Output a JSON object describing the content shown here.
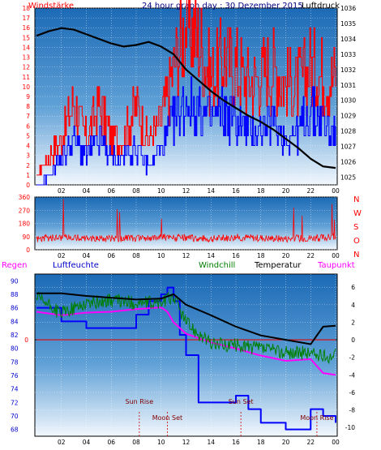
{
  "header": {
    "left": "Windstärke",
    "title": "24 hour graph day : 30 Dezember 2015",
    "right": "Luftdruck"
  },
  "colors": {
    "bg": "#ffffff",
    "gust": "#ff0000",
    "wind": "#0000ff",
    "pressure": "#000000",
    "direction": "#ff0000",
    "temperature": "#000000",
    "windchill": "#008000",
    "dewpoint": "#ff00ff",
    "humidity": "#0000ff",
    "rain": "#ff0000"
  },
  "chart_data": [
    {
      "type": "line",
      "id": "wind_pressure",
      "x_ticks": [
        "02",
        "04",
        "06",
        "08",
        "10",
        "12",
        "14",
        "16",
        "18",
        "20",
        "22",
        "00"
      ],
      "left_axis": {
        "ticks": [
          "0",
          "1",
          "2",
          "3",
          "4",
          "5",
          "6",
          "7",
          "8",
          "9",
          "10",
          "11",
          "12",
          "13",
          "14",
          "15",
          "16",
          "17",
          "18"
        ],
        "range": [
          0,
          18
        ]
      },
      "right_axis": {
        "ticks": [
          "1025",
          "1026",
          "1027",
          "1028",
          "1029",
          "1030",
          "1031",
          "1032",
          "1033",
          "1034",
          "1035",
          "1036"
        ],
        "range": [
          1024.5,
          1036
        ]
      },
      "series": [
        {
          "name": "Luftdruck",
          "axis": "right",
          "x": [
            0,
            1,
            2,
            3,
            4,
            5,
            6,
            7,
            8,
            9,
            10,
            11,
            12,
            13,
            14,
            15,
            16,
            17,
            18,
            19,
            20,
            21,
            22,
            23,
            24
          ],
          "y": [
            1034.2,
            1034.5,
            1034.7,
            1034.6,
            1034.3,
            1034.0,
            1033.7,
            1033.5,
            1033.6,
            1033.8,
            1033.5,
            1033.0,
            1032.0,
            1031.3,
            1030.6,
            1030.0,
            1029.5,
            1029.0,
            1028.6,
            1028.1,
            1027.5,
            1026.9,
            1026.2,
            1025.7,
            1025.6
          ]
        },
        {
          "name": "Windstärke Böen",
          "axis": "left",
          "x": [
            0,
            1,
            2,
            3,
            4,
            5,
            6,
            7,
            8,
            9,
            10,
            11,
            12,
            13,
            14,
            15,
            16,
            17,
            18,
            19,
            20,
            21,
            22,
            23,
            24
          ],
          "y": [
            1,
            3,
            5,
            9,
            5,
            9,
            5,
            5,
            9,
            5,
            7,
            13,
            18,
            16,
            12,
            14,
            13,
            11,
            12,
            13,
            11,
            11,
            13,
            12,
            12
          ]
        },
        {
          "name": "Windstärke",
          "axis": "left",
          "x": [
            0,
            1,
            2,
            3,
            4,
            5,
            6,
            7,
            8,
            9,
            10,
            11,
            12,
            13,
            14,
            15,
            16,
            17,
            18,
            19,
            20,
            21,
            22,
            23,
            24
          ],
          "y": [
            0,
            1,
            3,
            5,
            3,
            5,
            3,
            3,
            4,
            2,
            4,
            7,
            9,
            8,
            7,
            8,
            7,
            6,
            6,
            7,
            5,
            6,
            8,
            7,
            5
          ]
        }
      ]
    },
    {
      "type": "line",
      "id": "wind_direction",
      "x_ticks": [
        "02",
        "04",
        "06",
        "08",
        "10",
        "12",
        "14",
        "16",
        "18",
        "20",
        "22",
        "00"
      ],
      "left_axis": {
        "ticks": [
          "360",
          "270",
          "180",
          "90",
          "0"
        ],
        "range": [
          0,
          360
        ]
      },
      "right_labels": [
        "N",
        "W",
        "S",
        "O",
        "N"
      ],
      "series": [
        {
          "name": "Windrichtung",
          "x": [
            0,
            2,
            4,
            6,
            8,
            10,
            12,
            14,
            16,
            18,
            20,
            22,
            24
          ],
          "y": [
            75,
            85,
            80,
            75,
            80,
            85,
            80,
            75,
            85,
            80,
            75,
            80,
            85
          ]
        }
      ]
    },
    {
      "type": "line",
      "id": "temp_humidity",
      "x_ticks": [
        "02",
        "04",
        "06",
        "08",
        "10",
        "12",
        "14",
        "16",
        "18",
        "20",
        "22",
        "00"
      ],
      "header": {
        "rain": "Regen",
        "humidity": "Luftfeuchte",
        "windchill": "Windchill",
        "temperature": "Temperatur",
        "dewpoint": "Taupunkt"
      },
      "left_axis": {
        "ticks": [
          "90",
          "88",
          "86",
          "84",
          "82",
          "80",
          "78",
          "76",
          "74",
          "72",
          "70",
          "68"
        ],
        "range": [
          67,
          91
        ]
      },
      "rain_axis": {
        "tick": "0"
      },
      "right_axis": {
        "ticks": [
          "6",
          "4",
          "2",
          "0",
          "-2",
          "-4",
          "-6",
          "-8",
          "-10"
        ],
        "range": [
          -11,
          7.5
        ]
      },
      "series": [
        {
          "name": "Temperatur",
          "axis": "right",
          "x": [
            0,
            2,
            4,
            6,
            8,
            10,
            11,
            12,
            14,
            16,
            18,
            20,
            22,
            23,
            24
          ],
          "y": [
            5.3,
            5.3,
            5.0,
            4.8,
            4.6,
            4.7,
            5.2,
            4.0,
            2.8,
            1.5,
            0.5,
            0.0,
            -0.5,
            1.5,
            1.6
          ]
        },
        {
          "name": "Windchill",
          "axis": "right",
          "x": [
            0,
            2,
            4,
            6,
            8,
            10,
            11,
            12,
            14,
            16,
            18,
            20,
            22,
            23,
            24
          ],
          "y": [
            4.8,
            3.0,
            4.2,
            4.5,
            4.2,
            4.2,
            5.0,
            2.0,
            -0.5,
            -0.6,
            -1.0,
            -1.5,
            -1.5,
            -2.0,
            -1.8
          ]
        },
        {
          "name": "Taupunkt",
          "axis": "right",
          "x": [
            0,
            2,
            4,
            6,
            8,
            10,
            10.5,
            11,
            12,
            14,
            16,
            18,
            20,
            22,
            23,
            24
          ],
          "y": [
            3.2,
            2.8,
            3.1,
            3.2,
            3.5,
            3.7,
            3.2,
            2.0,
            0.7,
            -0.3,
            -1.0,
            -1.8,
            -2.4,
            -2.2,
            -3.8,
            -4.0
          ]
        },
        {
          "name": "Luftfeuchte",
          "axis": "left",
          "x": [
            0,
            2,
            4,
            6,
            8,
            9,
            10,
            10.5,
            11,
            11.5,
            12,
            13,
            14,
            16,
            17,
            18,
            20,
            22,
            23,
            24
          ],
          "y": [
            86,
            84,
            83,
            83,
            85,
            87,
            88,
            89,
            87,
            82,
            79,
            72,
            72,
            73,
            71,
            69,
            68,
            71,
            70,
            69
          ]
        },
        {
          "name": "Regen",
          "axis": "rain",
          "x": [
            0,
            24
          ],
          "y": [
            0,
            0
          ]
        }
      ],
      "annotations": [
        {
          "text": "Sun Rise",
          "x": 8.25
        },
        {
          "text": "Moon Set",
          "x": 10.5
        },
        {
          "text": "Sun Set",
          "x": 16.4
        },
        {
          "text": "Moon Rise",
          "x": 22.5
        }
      ]
    }
  ]
}
